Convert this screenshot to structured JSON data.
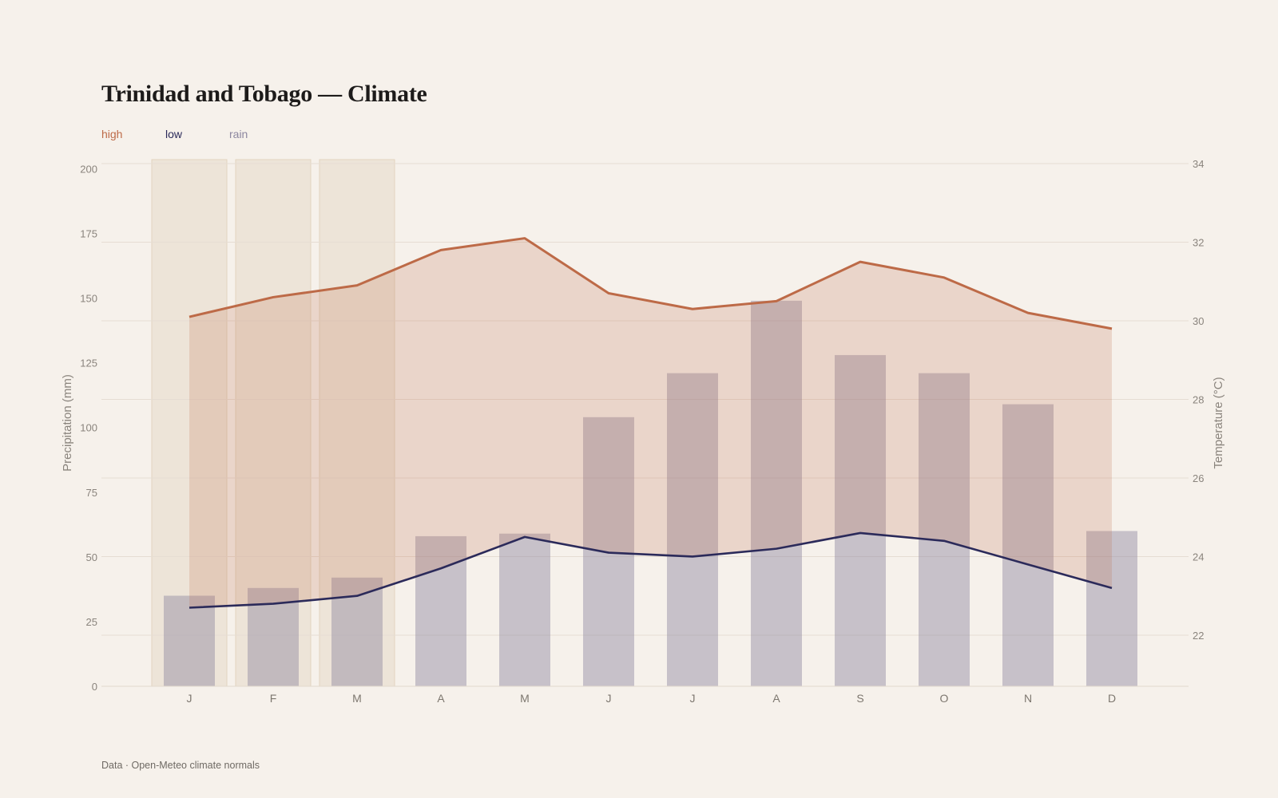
{
  "title": "Trinidad and Tobago — Climate",
  "legend": {
    "high": "high",
    "low": "low",
    "rain": "rain"
  },
  "footer": "Data · Open-Meteo climate normals",
  "colors": {
    "high": "#bd6a47",
    "low": "#2b2a5a",
    "rain": "#8d87a0",
    "dry_season_band": "#e7dccb",
    "background": "#f6f1eb"
  },
  "chart_data": {
    "type": "bar+line",
    "categories": [
      "J",
      "F",
      "M",
      "A",
      "M",
      "J",
      "J",
      "A",
      "S",
      "O",
      "N",
      "D"
    ],
    "series": [
      {
        "name": "rain",
        "type": "bar",
        "axis": "left",
        "values": [
          35,
          38,
          42,
          58,
          59,
          104,
          121,
          149,
          128,
          121,
          109,
          60
        ]
      },
      {
        "name": "high",
        "type": "area-line",
        "axis": "right",
        "values": [
          30.1,
          30.6,
          30.9,
          31.8,
          32.1,
          30.7,
          30.3,
          30.5,
          31.5,
          31.1,
          30.2,
          29.8
        ]
      },
      {
        "name": "low",
        "type": "line",
        "axis": "right",
        "values": [
          22.7,
          22.8,
          23.0,
          23.7,
          24.5,
          24.1,
          24.0,
          24.2,
          24.6,
          24.4,
          23.8,
          23.2
        ]
      }
    ],
    "dry_season_months": [
      0,
      1,
      2
    ],
    "y_left": {
      "label": "Precipitation (mm)",
      "ticks": [
        0,
        25,
        50,
        75,
        100,
        125,
        150,
        175,
        200
      ],
      "range": [
        0,
        202
      ]
    },
    "y_right": {
      "label": "Temperature (°C)",
      "ticks": [
        22,
        24,
        26,
        28,
        30,
        32,
        34
      ],
      "range": [
        20.7,
        34
      ]
    },
    "grid": true,
    "legend_position": "top-left"
  }
}
